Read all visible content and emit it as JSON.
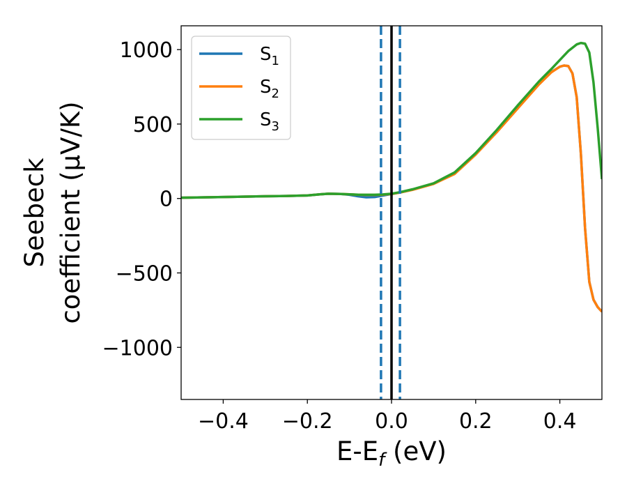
{
  "chart_data": {
    "type": "line",
    "xlabel_main": "E-E",
    "xlabel_sub": "f",
    "xlabel_unit": " (eV)",
    "ylabel_line1": "Seebeck",
    "ylabel_line2": "coefficient  (μV/K)",
    "xlim": [
      -0.5,
      0.5
    ],
    "ylim": [
      -1350,
      1160
    ],
    "xticks": [
      -0.4,
      -0.2,
      0.0,
      0.2,
      0.4
    ],
    "xtick_labels": [
      "−0.4",
      "−0.2",
      "0.0",
      "0.2",
      "0.4"
    ],
    "yticks": [
      -1000,
      -500,
      0,
      500,
      1000
    ],
    "ytick_labels": [
      "−1000",
      "−500",
      "0",
      "500",
      "1000"
    ],
    "legend_position": "top-left",
    "vlines": [
      {
        "x": -0.025,
        "style": "dashed",
        "color": "#1f77b4"
      },
      {
        "x": 0.0,
        "style": "solid",
        "color": "#000000"
      },
      {
        "x": 0.02,
        "style": "dashed",
        "color": "#1f77b4"
      }
    ],
    "series": [
      {
        "name": "S",
        "sub": "1",
        "color": "#1f77b4",
        "x": [
          -0.5,
          -0.4,
          -0.3,
          -0.25,
          -0.2,
          -0.17,
          -0.15,
          -0.12,
          -0.1,
          -0.08,
          -0.06,
          -0.04,
          -0.02,
          0.0,
          0.02,
          0.05,
          0.1,
          0.15,
          0.2,
          0.25,
          0.3,
          0.35,
          0.38,
          0.4,
          0.41,
          0.42,
          0.43,
          0.44,
          0.45,
          0.46,
          0.47,
          0.48,
          0.49,
          0.5
        ],
        "y": [
          5,
          10,
          15,
          17,
          20,
          28,
          32,
          30,
          25,
          15,
          8,
          10,
          20,
          30,
          40,
          60,
          100,
          170,
          300,
          450,
          610,
          770,
          850,
          885,
          893,
          890,
          840,
          680,
          300,
          -200,
          -560,
          -680,
          -730,
          -760
        ]
      },
      {
        "name": "S",
        "sub": "2",
        "color": "#ff7f0e",
        "x": [
          -0.5,
          -0.4,
          -0.3,
          -0.25,
          -0.2,
          -0.17,
          -0.15,
          -0.12,
          -0.1,
          -0.08,
          -0.06,
          -0.04,
          -0.02,
          0.0,
          0.02,
          0.05,
          0.1,
          0.15,
          0.2,
          0.25,
          0.3,
          0.35,
          0.38,
          0.4,
          0.41,
          0.42,
          0.43,
          0.44,
          0.45,
          0.46,
          0.47,
          0.48,
          0.49,
          0.5
        ],
        "y": [
          5,
          10,
          15,
          17,
          20,
          28,
          32,
          30,
          28,
          25,
          24,
          24,
          26,
          30,
          40,
          58,
          98,
          165,
          295,
          445,
          605,
          765,
          848,
          885,
          893,
          890,
          840,
          680,
          300,
          -200,
          -560,
          -680,
          -730,
          -760
        ]
      },
      {
        "name": "S",
        "sub": "3",
        "color": "#2ca02c",
        "x": [
          -0.5,
          -0.4,
          -0.3,
          -0.25,
          -0.2,
          -0.17,
          -0.15,
          -0.12,
          -0.1,
          -0.08,
          -0.06,
          -0.04,
          -0.02,
          0.0,
          0.02,
          0.05,
          0.1,
          0.15,
          0.2,
          0.25,
          0.3,
          0.35,
          0.38,
          0.4,
          0.42,
          0.44,
          0.45,
          0.46,
          0.47,
          0.48,
          0.49,
          0.5
        ],
        "y": [
          5,
          10,
          15,
          17,
          20,
          28,
          32,
          30,
          28,
          26,
          25,
          25,
          27,
          32,
          42,
          62,
          102,
          175,
          305,
          460,
          625,
          785,
          870,
          930,
          990,
          1035,
          1045,
          1040,
          980,
          780,
          470,
          130
        ]
      }
    ]
  }
}
